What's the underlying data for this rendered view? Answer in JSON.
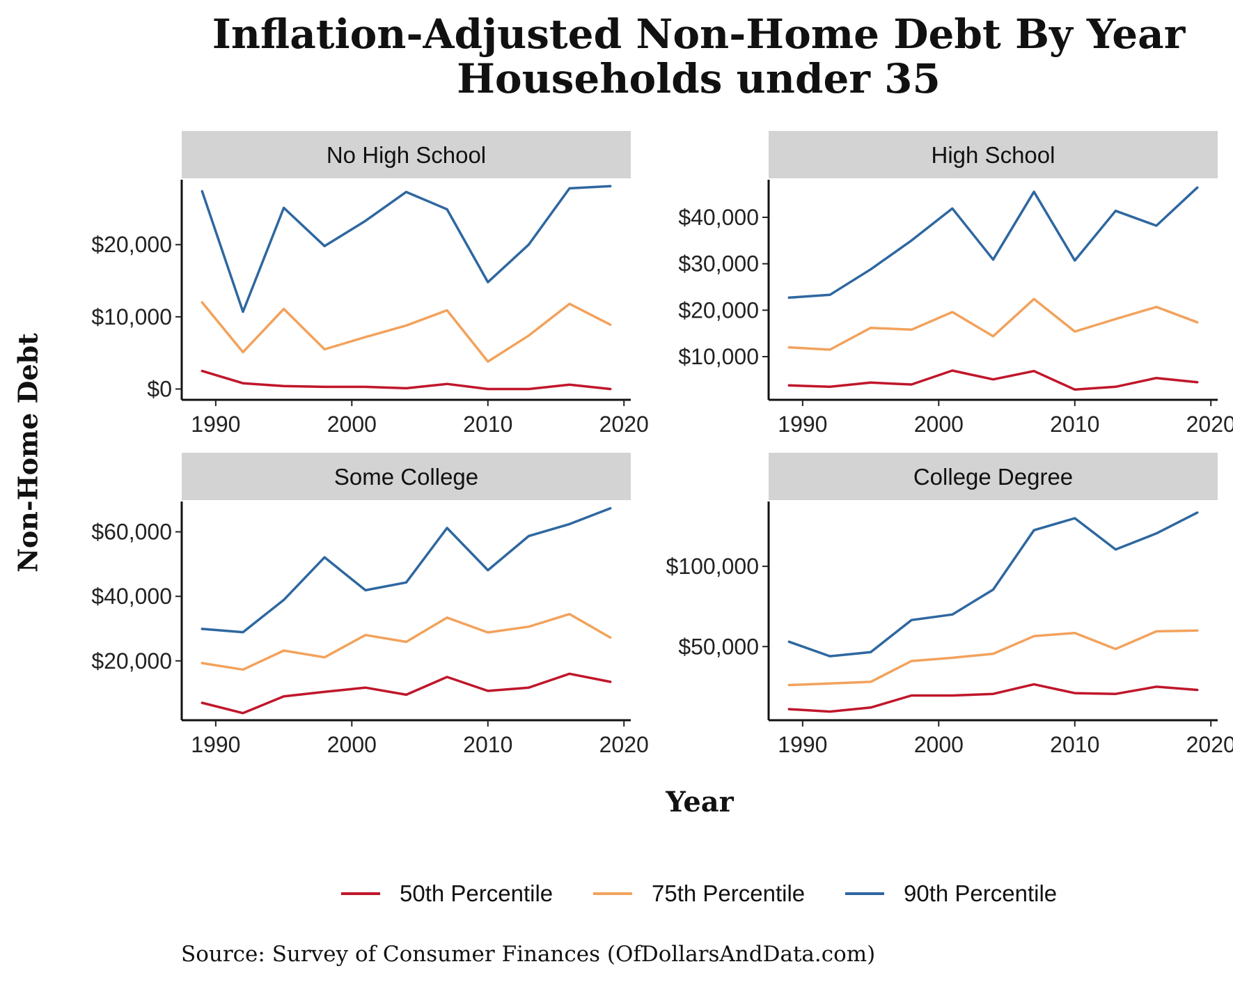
{
  "title_line1": "Inflation-Adjusted Non-Home Debt By Year",
  "title_line2": "Households under 35",
  "ylabel": "Non-Home Debt",
  "xlabel": "Year",
  "source": "Source:  Survey of Consumer Finances (OfDollarsAndData.com)",
  "colors": {
    "p50": "#c0162b",
    "p75": "#f2a25c",
    "p90": "#2e67a0",
    "strip": "#d3d3d3"
  },
  "legend": [
    {
      "key": "p50",
      "label": "50th Percentile"
    },
    {
      "key": "p75",
      "label": "75th Percentile"
    },
    {
      "key": "p90",
      "label": "90th Percentile"
    }
  ],
  "chart_data": {
    "type": "line",
    "x": [
      1989,
      1992,
      1995,
      1998,
      2001,
      2004,
      2007,
      2010,
      2013,
      2016,
      2019
    ],
    "xticks": [
      1990,
      2000,
      2010,
      2020
    ],
    "panels": [
      {
        "name": "No High School",
        "yticks": [
          0,
          10000,
          20000
        ],
        "yticklabels": [
          "$0",
          "$10,000",
          "$20,000"
        ],
        "ylim": [
          -1500,
          29000
        ],
        "series": [
          {
            "key": "p50",
            "name": "50th Percentile",
            "values": [
              2500,
              800,
              400,
              300,
              300,
              100,
              700,
              0,
              0,
              600,
              0
            ]
          },
          {
            "key": "p75",
            "name": "75th Percentile",
            "values": [
              12000,
              5100,
              11100,
              5500,
              7200,
              8800,
              10900,
              3800,
              7400,
              11800,
              8900
            ]
          },
          {
            "key": "p90",
            "name": "90th Percentile",
            "values": [
              27400,
              10700,
              25100,
              19800,
              23300,
              27300,
              24900,
              14800,
              20000,
              27800,
              28100
            ]
          }
        ]
      },
      {
        "name": "High School",
        "yticks": [
          10000,
          20000,
          30000,
          40000
        ],
        "yticklabels": [
          "$10,000",
          "$20,000",
          "$30,000",
          "$40,000"
        ],
        "ylim": [
          700,
          48100
        ],
        "series": [
          {
            "key": "p50",
            "name": "50th Percentile",
            "values": [
              3800,
              3500,
              4400,
              4000,
              7000,
              5100,
              6900,
              2900,
              3500,
              5400,
              4500
            ]
          },
          {
            "key": "p75",
            "name": "75th Percentile",
            "values": [
              12000,
              11500,
              16200,
              15800,
              19600,
              14400,
              22400,
              15400,
              18100,
              20700,
              17400
            ]
          },
          {
            "key": "p90",
            "name": "90th Percentile",
            "values": [
              22700,
              23300,
              28800,
              35000,
              41900,
              30900,
              45500,
              30700,
              41400,
              38200,
              46400
            ]
          }
        ]
      },
      {
        "name": "Some College",
        "yticks": [
          20000,
          40000,
          60000
        ],
        "yticklabels": [
          "$20,000",
          "$40,000",
          "$60,000"
        ],
        "ylim": [
          1600,
          69400
        ],
        "series": [
          {
            "key": "p50",
            "name": "50th Percentile",
            "values": [
              7000,
              3800,
              9000,
              10400,
              11700,
              9500,
              15000,
              10700,
              11700,
              16000,
              13500
            ]
          },
          {
            "key": "p75",
            "name": "75th Percentile",
            "values": [
              19300,
              17300,
              23200,
              21100,
              28000,
              25900,
              33400,
              28800,
              30600,
              34500,
              27200
            ]
          },
          {
            "key": "p90",
            "name": "90th Percentile",
            "values": [
              29900,
              28900,
              38900,
              52100,
              41900,
              44300,
              61200,
              48100,
              58700,
              62400,
              67300
            ]
          }
        ]
      },
      {
        "name": "College Degree",
        "yticks": [
          50000,
          100000
        ],
        "yticklabels": [
          "$50,000",
          "$100,000"
        ],
        "ylim": [
          4100,
          140400
        ],
        "series": [
          {
            "key": "p50",
            "name": "50th Percentile",
            "values": [
              11000,
              9500,
              12000,
              19500,
              19500,
              20500,
              26500,
              21000,
              20500,
              25000,
              23000
            ]
          },
          {
            "key": "p75",
            "name": "75th Percentile",
            "values": [
              26000,
              27000,
              28000,
              41000,
              43000,
              45500,
              56500,
              58500,
              48500,
              59500,
              60000
            ]
          },
          {
            "key": "p90",
            "name": "90th Percentile",
            "values": [
              53000,
              44000,
              46500,
              66500,
              70000,
              85500,
              122500,
              130000,
              110500,
              120500,
              133500
            ]
          }
        ]
      }
    ]
  }
}
